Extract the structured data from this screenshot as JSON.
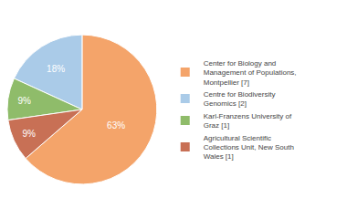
{
  "chart_data": {
    "type": "pie",
    "categories": [
      "Center for Biology and\nManagement of Populations,\nMontpellier [7]",
      "Centre for Biodiversity\nGenomics [2]",
      "Karl-Franzens University of\nGraz [1]",
      "Agricultural Scientific\nCollections Unit, New South\nWales [1]"
    ],
    "values": [
      63,
      18,
      9,
      9
    ],
    "value_labels": [
      "63%",
      "18%",
      "9%",
      "9%"
    ],
    "colors": [
      "#F4A46A",
      "#AACBE8",
      "#8FBC6A",
      "#C87055"
    ],
    "data_labels": true,
    "legend": "right"
  }
}
